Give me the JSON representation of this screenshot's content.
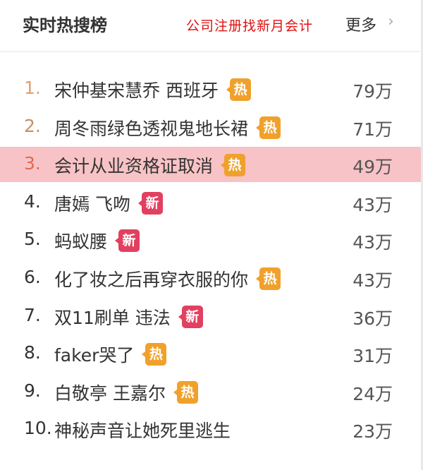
{
  "header": {
    "title": "实时热搜榜",
    "promo": "公司注册找新月会计",
    "more_label": "更多",
    "more_icon": "chevron-right-icon"
  },
  "colors": {
    "hot_badge": "#f0a12c",
    "new_badge": "#e24060",
    "highlight_row": "#f8c3c6",
    "promo_text": "#e01010",
    "rank1": "#e0a070",
    "rank2": "#c8905c",
    "rank3": "#e06a50"
  },
  "items": [
    {
      "rank": "1.",
      "topic": "宋仲基宋慧乔 西班牙",
      "badge": "热",
      "badge_type": "hot",
      "count": "79万",
      "highlighted": false
    },
    {
      "rank": "2.",
      "topic": "周冬雨绿色透视鬼地长裙",
      "badge": "热",
      "badge_type": "hot",
      "count": "71万",
      "highlighted": false
    },
    {
      "rank": "3.",
      "topic": "会计从业资格证取消",
      "badge": "热",
      "badge_type": "hot",
      "count": "49万",
      "highlighted": true
    },
    {
      "rank": "4.",
      "topic": "唐嫣 飞吻",
      "badge": "新",
      "badge_type": "new",
      "count": "43万",
      "highlighted": false
    },
    {
      "rank": "5.",
      "topic": "蚂蚁腰",
      "badge": "新",
      "badge_type": "new",
      "count": "43万",
      "highlighted": false
    },
    {
      "rank": "6.",
      "topic": "化了妆之后再穿衣服的你",
      "badge": "热",
      "badge_type": "hot",
      "count": "43万",
      "highlighted": false
    },
    {
      "rank": "7.",
      "topic": "双11刷单 违法",
      "badge": "新",
      "badge_type": "new",
      "count": "36万",
      "highlighted": false
    },
    {
      "rank": "8.",
      "topic": "faker哭了",
      "badge": "热",
      "badge_type": "hot",
      "count": "31万",
      "highlighted": false
    },
    {
      "rank": "9.",
      "topic": "白敬亭 王嘉尔",
      "badge": "热",
      "badge_type": "hot",
      "count": "24万",
      "highlighted": false
    },
    {
      "rank": "10.",
      "topic": "神秘声音让她死里逃生",
      "badge": "",
      "badge_type": "",
      "count": "23万",
      "highlighted": false
    }
  ]
}
